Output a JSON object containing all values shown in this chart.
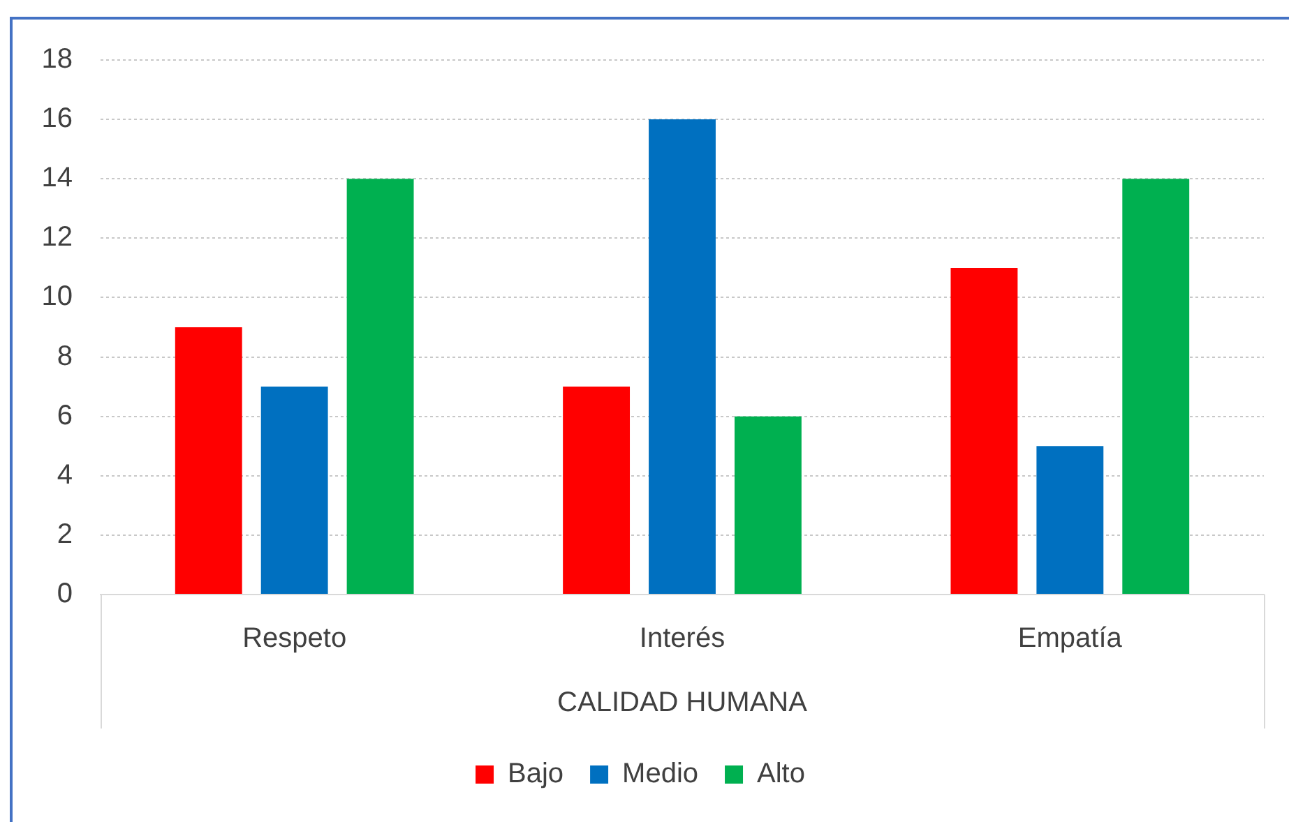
{
  "chart_data": {
    "type": "bar",
    "xlabel": "CALIDAD HUMANA",
    "categories": [
      "Respeto",
      "Interés",
      "Empatía"
    ],
    "series": [
      {
        "name": "Bajo",
        "color": "#ff0000",
        "values": [
          9,
          7,
          11
        ]
      },
      {
        "name": "Medio",
        "color": "#0070c0",
        "values": [
          7,
          16,
          5
        ]
      },
      {
        "name": "Alto",
        "color": "#00b050",
        "values": [
          14,
          6,
          14
        ]
      }
    ],
    "ylim": [
      0,
      18
    ],
    "yticks": [
      0,
      2,
      4,
      6,
      8,
      10,
      12,
      14,
      16,
      18
    ],
    "grid": "y",
    "legend": "bottom"
  }
}
